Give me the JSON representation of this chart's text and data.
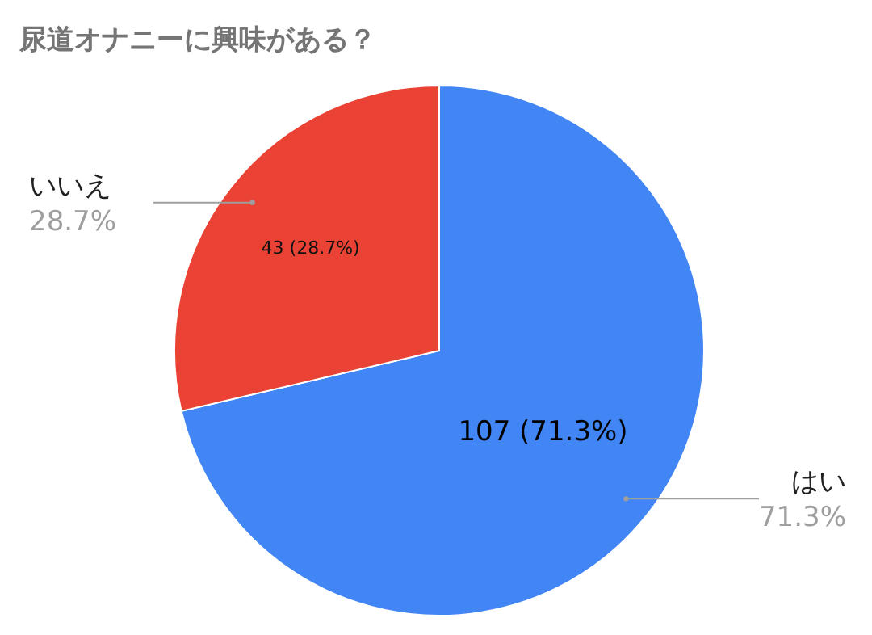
{
  "chart_data": {
    "type": "pie",
    "title": "尿道オナニーに興味がある？",
    "categories": [
      "はい",
      "いいえ"
    ],
    "values": [
      107,
      43
    ],
    "colors": [
      "#4285f4",
      "#ea4335"
    ],
    "value_labels": [
      "107 (71.3%)",
      "43 (28.7%)"
    ],
    "annotations": [
      {
        "text": "71.3%",
        "x": "はい"
      },
      {
        "text": "28.7%",
        "x": "いいえ"
      }
    ]
  }
}
